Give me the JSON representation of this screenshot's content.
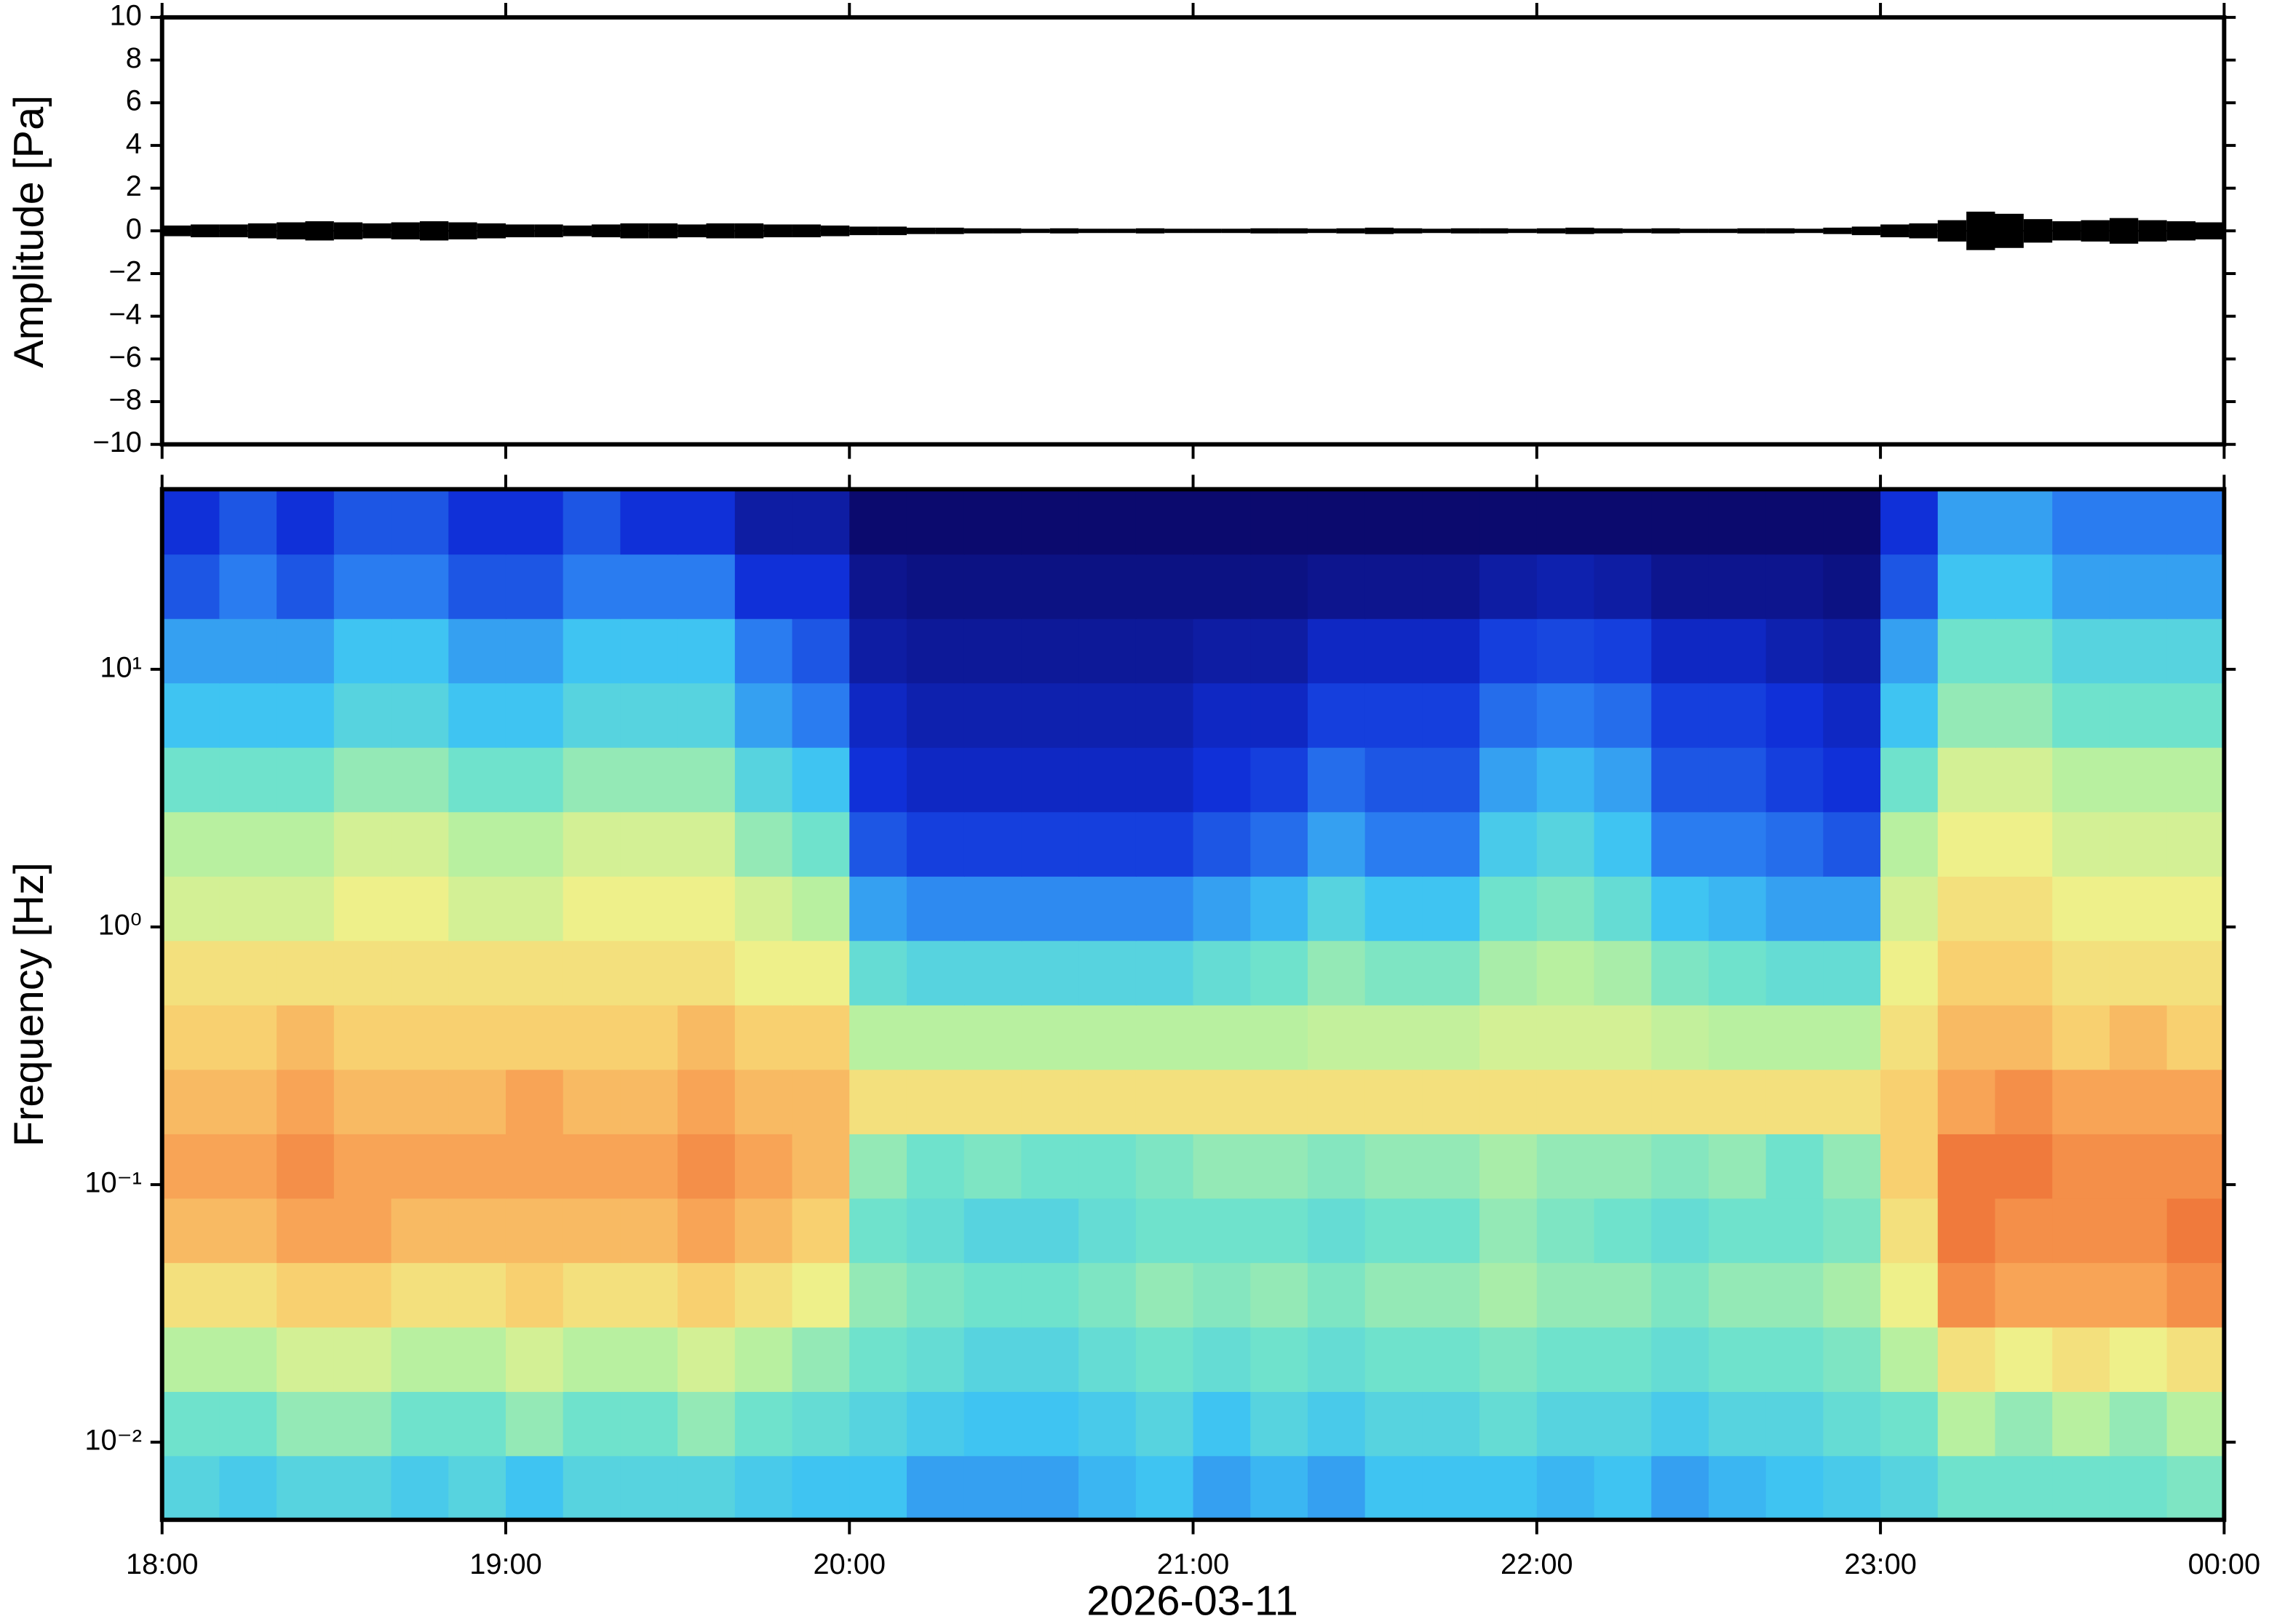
{
  "chart_data": [
    {
      "type": "waveform",
      "ylabel": "Amplitude [Pa]",
      "x": [
        0,
        5,
        10,
        15,
        20,
        25,
        30,
        35,
        40,
        45,
        50,
        55,
        60,
        65,
        70,
        75,
        80,
        85,
        90,
        95,
        100,
        105,
        110,
        115,
        120,
        125,
        130,
        135,
        140,
        145,
        150,
        155,
        160,
        165,
        170,
        175,
        180,
        185,
        190,
        195,
        200,
        205,
        210,
        215,
        220,
        225,
        230,
        235,
        240,
        245,
        250,
        255,
        260,
        265,
        270,
        275,
        280,
        285,
        290,
        295,
        300,
        305,
        310,
        315,
        320,
        325,
        330,
        335,
        340,
        345,
        350,
        355
      ],
      "values": [
        0.25,
        0.3,
        0.3,
        0.35,
        0.4,
        0.45,
        0.4,
        0.35,
        0.4,
        0.45,
        0.4,
        0.35,
        0.3,
        0.3,
        0.25,
        0.3,
        0.35,
        0.35,
        0.3,
        0.35,
        0.35,
        0.3,
        0.3,
        0.25,
        0.2,
        0.2,
        0.15,
        0.15,
        0.12,
        0.12,
        0.1,
        0.12,
        0.1,
        0.1,
        0.12,
        0.1,
        0.1,
        0.1,
        0.12,
        0.12,
        0.1,
        0.12,
        0.15,
        0.12,
        0.1,
        0.12,
        0.12,
        0.1,
        0.12,
        0.15,
        0.12,
        0.1,
        0.12,
        0.1,
        0.1,
        0.12,
        0.12,
        0.1,
        0.15,
        0.2,
        0.3,
        0.35,
        0.5,
        0.9,
        0.8,
        0.55,
        0.45,
        0.5,
        0.6,
        0.5,
        0.45,
        0.4
      ],
      "color": "#000000",
      "xlim": [
        0,
        360
      ],
      "xticks": [
        0,
        60,
        120,
        180,
        240,
        300,
        360
      ],
      "ylim": [
        -10,
        10
      ],
      "yticks": [
        {
          "value": -10,
          "label": "−10"
        },
        {
          "value": -8,
          "label": "−8"
        },
        {
          "value": -6,
          "label": "−6"
        },
        {
          "value": -4,
          "label": "−4"
        },
        {
          "value": -2,
          "label": "−2"
        },
        0,
        2,
        4,
        6,
        8,
        10
      ]
    },
    {
      "type": "heatmap",
      "ylabel": "Frequency [Hz]",
      "xlabel": "2026-03-11",
      "xbins": [
        0,
        10,
        20,
        30,
        40,
        50,
        60,
        70,
        80,
        90,
        100,
        110,
        120,
        130,
        140,
        150,
        160,
        170,
        180,
        190,
        200,
        210,
        220,
        230,
        240,
        250,
        260,
        270,
        280,
        290,
        300,
        310,
        320,
        330,
        340,
        350,
        360
      ],
      "ybins": [
        0.005,
        0.0089,
        0.0158,
        0.0281,
        0.05,
        0.0889,
        0.158,
        0.281,
        0.5,
        0.889,
        1.58,
        2.81,
        5,
        8.89,
        15.8,
        28.1,
        50
      ],
      "values": [
        [
          3.5,
          3.2,
          3.5,
          3.5,
          3.2,
          3.5,
          3,
          3.5,
          3.5,
          3.5,
          3.2,
          3,
          3,
          2.5,
          2.5,
          2.5,
          2.8,
          3,
          2.5,
          2.8,
          2.5,
          3,
          3,
          3,
          2.8,
          3,
          2.5,
          2.8,
          3,
          3.2,
          3.5,
          4,
          4,
          4,
          4,
          4.2
        ],
        [
          4,
          4,
          4.5,
          4.5,
          4,
          4,
          4.5,
          4,
          4,
          4.5,
          4,
          3.8,
          3.5,
          3.2,
          3,
          3,
          3.2,
          3.5,
          3,
          3.5,
          3.2,
          3.5,
          3.5,
          3.8,
          3.5,
          3.5,
          3.2,
          3.5,
          3.5,
          3.8,
          4,
          5,
          4.5,
          5,
          4.5,
          5
        ],
        [
          5,
          5,
          5.5,
          5.5,
          5,
          5,
          5.5,
          5,
          5,
          5.5,
          5,
          4.5,
          4,
          3.8,
          3.5,
          3.5,
          3.8,
          4,
          3.8,
          4,
          3.8,
          4,
          4,
          4.2,
          4,
          4,
          3.8,
          4,
          4,
          4.2,
          5,
          6.5,
          6,
          6.5,
          6,
          6.5
        ],
        [
          6.5,
          6.5,
          7,
          7,
          6.5,
          6.5,
          7,
          6.5,
          6.5,
          7,
          6.5,
          6,
          4.5,
          4.2,
          4,
          4,
          4.2,
          4.5,
          4.3,
          4.5,
          4.2,
          4.5,
          4.5,
          4.8,
          4.5,
          4.5,
          4.2,
          4.5,
          4.5,
          4.8,
          6,
          8.5,
          8,
          8,
          8,
          8.5
        ],
        [
          7.5,
          7.5,
          8,
          8,
          7.5,
          7.5,
          7.5,
          7.5,
          7.5,
          8,
          7.5,
          7,
          4,
          3.8,
          3.5,
          3.5,
          3.8,
          4,
          4,
          4,
          3.8,
          4,
          4,
          4.5,
          4.2,
          4,
          3.8,
          4,
          4,
          4.2,
          6.5,
          9,
          8.5,
          8.5,
          8.5,
          9
        ],
        [
          8,
          8,
          8.5,
          8,
          8,
          8,
          8,
          8,
          8,
          8.5,
          8,
          7.5,
          4.5,
          4,
          4.2,
          4,
          4,
          4.2,
          4.5,
          4.5,
          4.3,
          4.5,
          4.5,
          4.8,
          4.5,
          4.5,
          4.3,
          4.5,
          4,
          4.5,
          7,
          9,
          9,
          8.5,
          8.5,
          8.5
        ],
        [
          7.5,
          7.5,
          8,
          7.5,
          7.5,
          7.5,
          8,
          7.5,
          7.5,
          8,
          7.5,
          7.5,
          6.5,
          6.5,
          6.5,
          6.5,
          6.5,
          6.5,
          6.5,
          6.5,
          6.5,
          6.5,
          6.5,
          6.5,
          6.5,
          6.5,
          6.5,
          6.5,
          6.5,
          6.5,
          7,
          8,
          8.5,
          8,
          8,
          8
        ],
        [
          7,
          7,
          7.5,
          7,
          7,
          7,
          7,
          7,
          7,
          7.5,
          7,
          7,
          5,
          5,
          5,
          5,
          5,
          5,
          5,
          5,
          5.2,
          5.2,
          5.2,
          5.5,
          5.5,
          5.5,
          5.2,
          5,
          5,
          5,
          6.5,
          7.5,
          7.5,
          7,
          7.5,
          7
        ],
        [
          6.5,
          6.5,
          6.5,
          6.5,
          6.5,
          6.5,
          6.5,
          6.5,
          6.5,
          6.5,
          6,
          6,
          3.8,
          3.5,
          3.5,
          3.5,
          3.5,
          3.5,
          3.8,
          4,
          4.5,
          4.2,
          4.2,
          4.8,
          5,
          4.8,
          4.2,
          4,
          3.8,
          3.8,
          6,
          7,
          7,
          6.5,
          6.5,
          6.5
        ],
        [
          5.5,
          5.5,
          5.5,
          6,
          6,
          5.5,
          5.5,
          6,
          6,
          6,
          5.5,
          5,
          2.5,
          2.2,
          2.2,
          2.2,
          2.2,
          2.2,
          2.5,
          2.8,
          3.5,
          3,
          3,
          4,
          4.2,
          3.8,
          3,
          2.8,
          2.5,
          2.5,
          5.5,
          6.5,
          6.5,
          6,
          6,
          6
        ],
        [
          5,
          5,
          5,
          5.5,
          5.5,
          5,
          5,
          5.5,
          5.5,
          5.5,
          4.5,
          4,
          1.5,
          1.2,
          1.2,
          1.2,
          1.2,
          1.2,
          1.5,
          1.8,
          2.5,
          2,
          2,
          3.2,
          3.5,
          3,
          2,
          2,
          1.8,
          1.5,
          5,
          6,
          6,
          5.5,
          5.5,
          5.5
        ],
        [
          4,
          4,
          4,
          4.5,
          4.5,
          4,
          4,
          4.5,
          4.5,
          4.5,
          3.5,
          3,
          1,
          0.8,
          0.8,
          0.8,
          0.8,
          0.8,
          1,
          1.2,
          1.8,
          1.5,
          1.5,
          2.5,
          2.8,
          2.5,
          1.5,
          1.5,
          1.2,
          1,
          4,
          5.5,
          5.5,
          5,
          5,
          5
        ],
        [
          3,
          3,
          3,
          3.5,
          3.5,
          3,
          3,
          3.5,
          3.5,
          3.5,
          2.5,
          2,
          0.8,
          0.6,
          0.6,
          0.6,
          0.6,
          0.6,
          0.8,
          0.8,
          1.2,
          1.2,
          1.2,
          1.8,
          2,
          1.8,
          1.2,
          1.2,
          1,
          0.8,
          3,
          4.5,
          4.5,
          4,
          4,
          4
        ],
        [
          2.5,
          2.5,
          2.5,
          3,
          3,
          2.5,
          2.5,
          3,
          3,
          3,
          2,
          1.5,
          0.5,
          0.4,
          0.4,
          0.4,
          0.4,
          0.4,
          0.5,
          0.5,
          0.8,
          0.8,
          0.8,
          1.2,
          1.3,
          1.2,
          0.8,
          0.8,
          0.6,
          0.5,
          2.5,
          4,
          4,
          3.5,
          3.5,
          3.5
        ],
        [
          1.5,
          2,
          1.5,
          2,
          2,
          1.5,
          1.5,
          2,
          2,
          2,
          1,
          1,
          0.3,
          0.2,
          0.2,
          0.2,
          0.2,
          0.2,
          0.2,
          0.2,
          0.3,
          0.3,
          0.3,
          0.5,
          0.6,
          0.5,
          0.3,
          0.3,
          0.3,
          0.2,
          1.5,
          3,
          3,
          2.5,
          2.5,
          2.5
        ],
        [
          1,
          1.5,
          1,
          1.5,
          1.5,
          1,
          1,
          1.5,
          1,
          1,
          0.5,
          0.5,
          0,
          0,
          0,
          0,
          0,
          0,
          0,
          0,
          0,
          0,
          0,
          0,
          0,
          0,
          0,
          0,
          0,
          0,
          1,
          2.5,
          2.5,
          2,
          2,
          2
        ]
      ],
      "zlim": [
        0,
        10
      ],
      "colormap": [
        "#0b0a6e",
        "#1030d8",
        "#2a7cf0",
        "#3fc4f2",
        "#6fe2cc",
        "#b8f0a0",
        "#eef08a",
        "#f8d070",
        "#f8a456",
        "#f07a3c",
        "#e04828"
      ],
      "log_y": true,
      "xlim": [
        0,
        360
      ],
      "xticks": [
        {
          "value": 0,
          "label": "18:00"
        },
        {
          "value": 60,
          "label": "19:00"
        },
        {
          "value": 120,
          "label": "20:00"
        },
        {
          "value": 180,
          "label": "21:00"
        },
        {
          "value": 240,
          "label": "22:00"
        },
        {
          "value": 300,
          "label": "23:00"
        },
        {
          "value": 360,
          "label": "00:00"
        }
      ],
      "ylim": [
        0.005,
        50
      ],
      "yticks": [
        {
          "value": 0.01,
          "label": "10⁻²"
        },
        {
          "value": 0.1,
          "label": "10⁻¹"
        },
        {
          "value": 1,
          "label": "10⁰"
        },
        {
          "value": 10,
          "label": "10¹"
        }
      ]
    }
  ]
}
